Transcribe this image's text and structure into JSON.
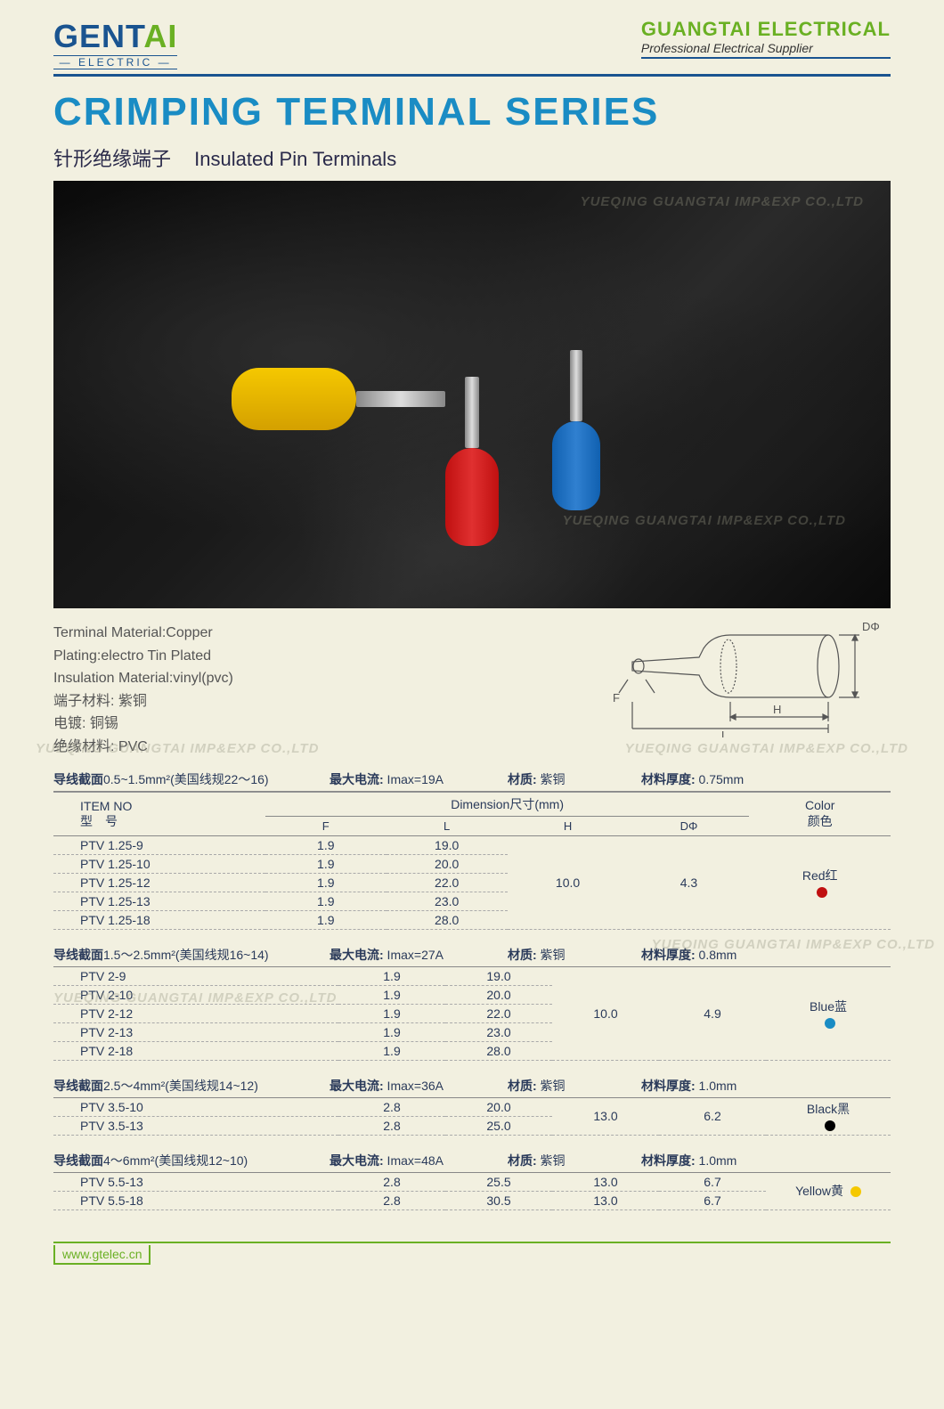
{
  "header": {
    "logo_main": "GENT",
    "logo_accent": "AI",
    "logo_sub": "— ELECTRIC —",
    "company": "GUANGTAI ELECTRICAL",
    "tagline": "Professional Electrical Supplier"
  },
  "title": "CRIMPING TERMINAL SERIES",
  "subtitle_cn": "针形绝缘端子",
  "subtitle_en": "Insulated Pin Terminals",
  "watermark": "YUEQING GUANGTAI IMP&EXP CO.,LTD",
  "specs": {
    "en1": "Terminal Material:Copper",
    "en2": "Plating:electro Tin Plated",
    "en3": "Insulation Material:vinyl(pvc)",
    "cn1": "端子材料: 紫铜",
    "cn2": "电镀: 铜锡",
    "cn3": "绝缘材料: PVC"
  },
  "diagram": {
    "label_d": "DΦ",
    "label_h": "H",
    "label_f": "F",
    "label_l": "L"
  },
  "table_headers": {
    "item_en": "ITEM NO",
    "item_cn": "型　号",
    "dimension": "Dimension尺寸(mm)",
    "f": "F",
    "l": "L",
    "h": "H",
    "d": "DΦ",
    "color_en": "Color",
    "color_cn": "颜色"
  },
  "group_labels": {
    "wire": "导线截面",
    "awg": "美国线规",
    "imax": "最大电流:",
    "material_label": "材质:",
    "material_val": "紫铜",
    "thickness": "材料厚度:"
  },
  "groups": [
    {
      "wire_range": "0.5~1.5mm²",
      "awg": "22～16",
      "imax": "Imax=19A",
      "thickness": "0.75mm",
      "h": "10.0",
      "d": "4.3",
      "color": "Red红",
      "color_hex": "#c01010",
      "rows": [
        {
          "item": "PTV 1.25-9",
          "f": "1.9",
          "l": "19.0"
        },
        {
          "item": "PTV 1.25-10",
          "f": "1.9",
          "l": "20.0"
        },
        {
          "item": "PTV 1.25-12",
          "f": "1.9",
          "l": "22.0"
        },
        {
          "item": "PTV 1.25-13",
          "f": "1.9",
          "l": "23.0"
        },
        {
          "item": "PTV 1.25-18",
          "f": "1.9",
          "l": "28.0"
        }
      ]
    },
    {
      "wire_range": "1.5～2.5mm²",
      "awg": "16~14",
      "imax": "Imax=27A",
      "thickness": "0.8mm",
      "h": "10.0",
      "d": "4.9",
      "color": "Blue蓝",
      "color_hex": "#1a8cc4",
      "rows": [
        {
          "item": "PTV 2-9",
          "f": "1.9",
          "l": "19.0"
        },
        {
          "item": "PTV 2-10",
          "f": "1.9",
          "l": "20.0"
        },
        {
          "item": "PTV 2-12",
          "f": "1.9",
          "l": "22.0"
        },
        {
          "item": "PTV 2-13",
          "f": "1.9",
          "l": "23.0"
        },
        {
          "item": "PTV 2-18",
          "f": "1.9",
          "l": "28.0"
        }
      ]
    },
    {
      "wire_range": "2.5～4mm²",
      "awg": "14~12",
      "imax": "Imax=36A",
      "thickness": "1.0mm",
      "h": "13.0",
      "d": "6.2",
      "color": "Black黑",
      "color_hex": "#000000",
      "rows": [
        {
          "item": "PTV 3.5-10",
          "f": "2.8",
          "l": "20.0"
        },
        {
          "item": "PTV 3.5-13",
          "f": "2.8",
          "l": "25.0"
        }
      ]
    },
    {
      "wire_range": "4～6mm²",
      "awg": "12~10",
      "imax": "Imax=48A",
      "thickness": "1.0mm",
      "h_per_row": true,
      "color": "Yellow黄",
      "color_hex": "#f5c800",
      "rows": [
        {
          "item": "PTV 5.5-13",
          "f": "2.8",
          "l": "25.5",
          "h": "13.0",
          "d": "6.7"
        },
        {
          "item": "PTV 5.5-18",
          "f": "2.8",
          "l": "30.5",
          "h": "13.0",
          "d": "6.7"
        }
      ]
    }
  ],
  "footer_url": "www.gtelec.cn"
}
